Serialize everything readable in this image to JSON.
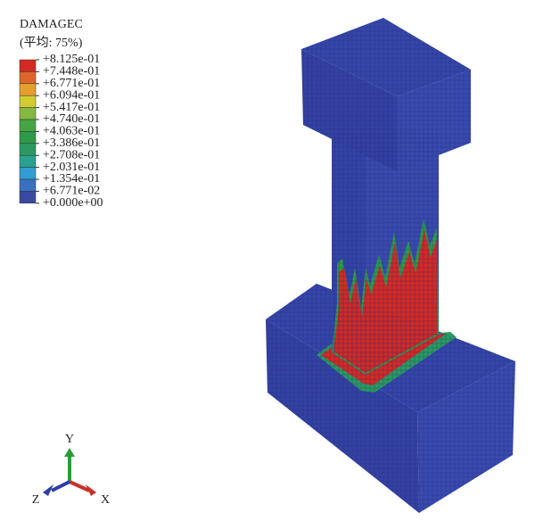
{
  "legend": {
    "title": "DAMAGEC",
    "subtitle": "(平均: 75%)",
    "labels": [
      "+8.125e-01",
      "+7.448e-01",
      "+6.771e-01",
      "+6.094e-01",
      "+5.417e-01",
      "+4.740e-01",
      "+4.063e-01",
      "+3.386e-01",
      "+2.708e-01",
      "+2.031e-01",
      "+1.354e-01",
      "+6.771e-02",
      "+0.000e+00"
    ],
    "colors": [
      "#d42a24",
      "#dd652a",
      "#e59f2a",
      "#d2cc30",
      "#86b940",
      "#45a442",
      "#2f9a47",
      "#2a9a60",
      "#27a390",
      "#2f9ed2",
      "#3a70c0",
      "#3a4aa0"
    ]
  },
  "triad": {
    "y": "Y",
    "x": "X",
    "z": "Z"
  }
}
